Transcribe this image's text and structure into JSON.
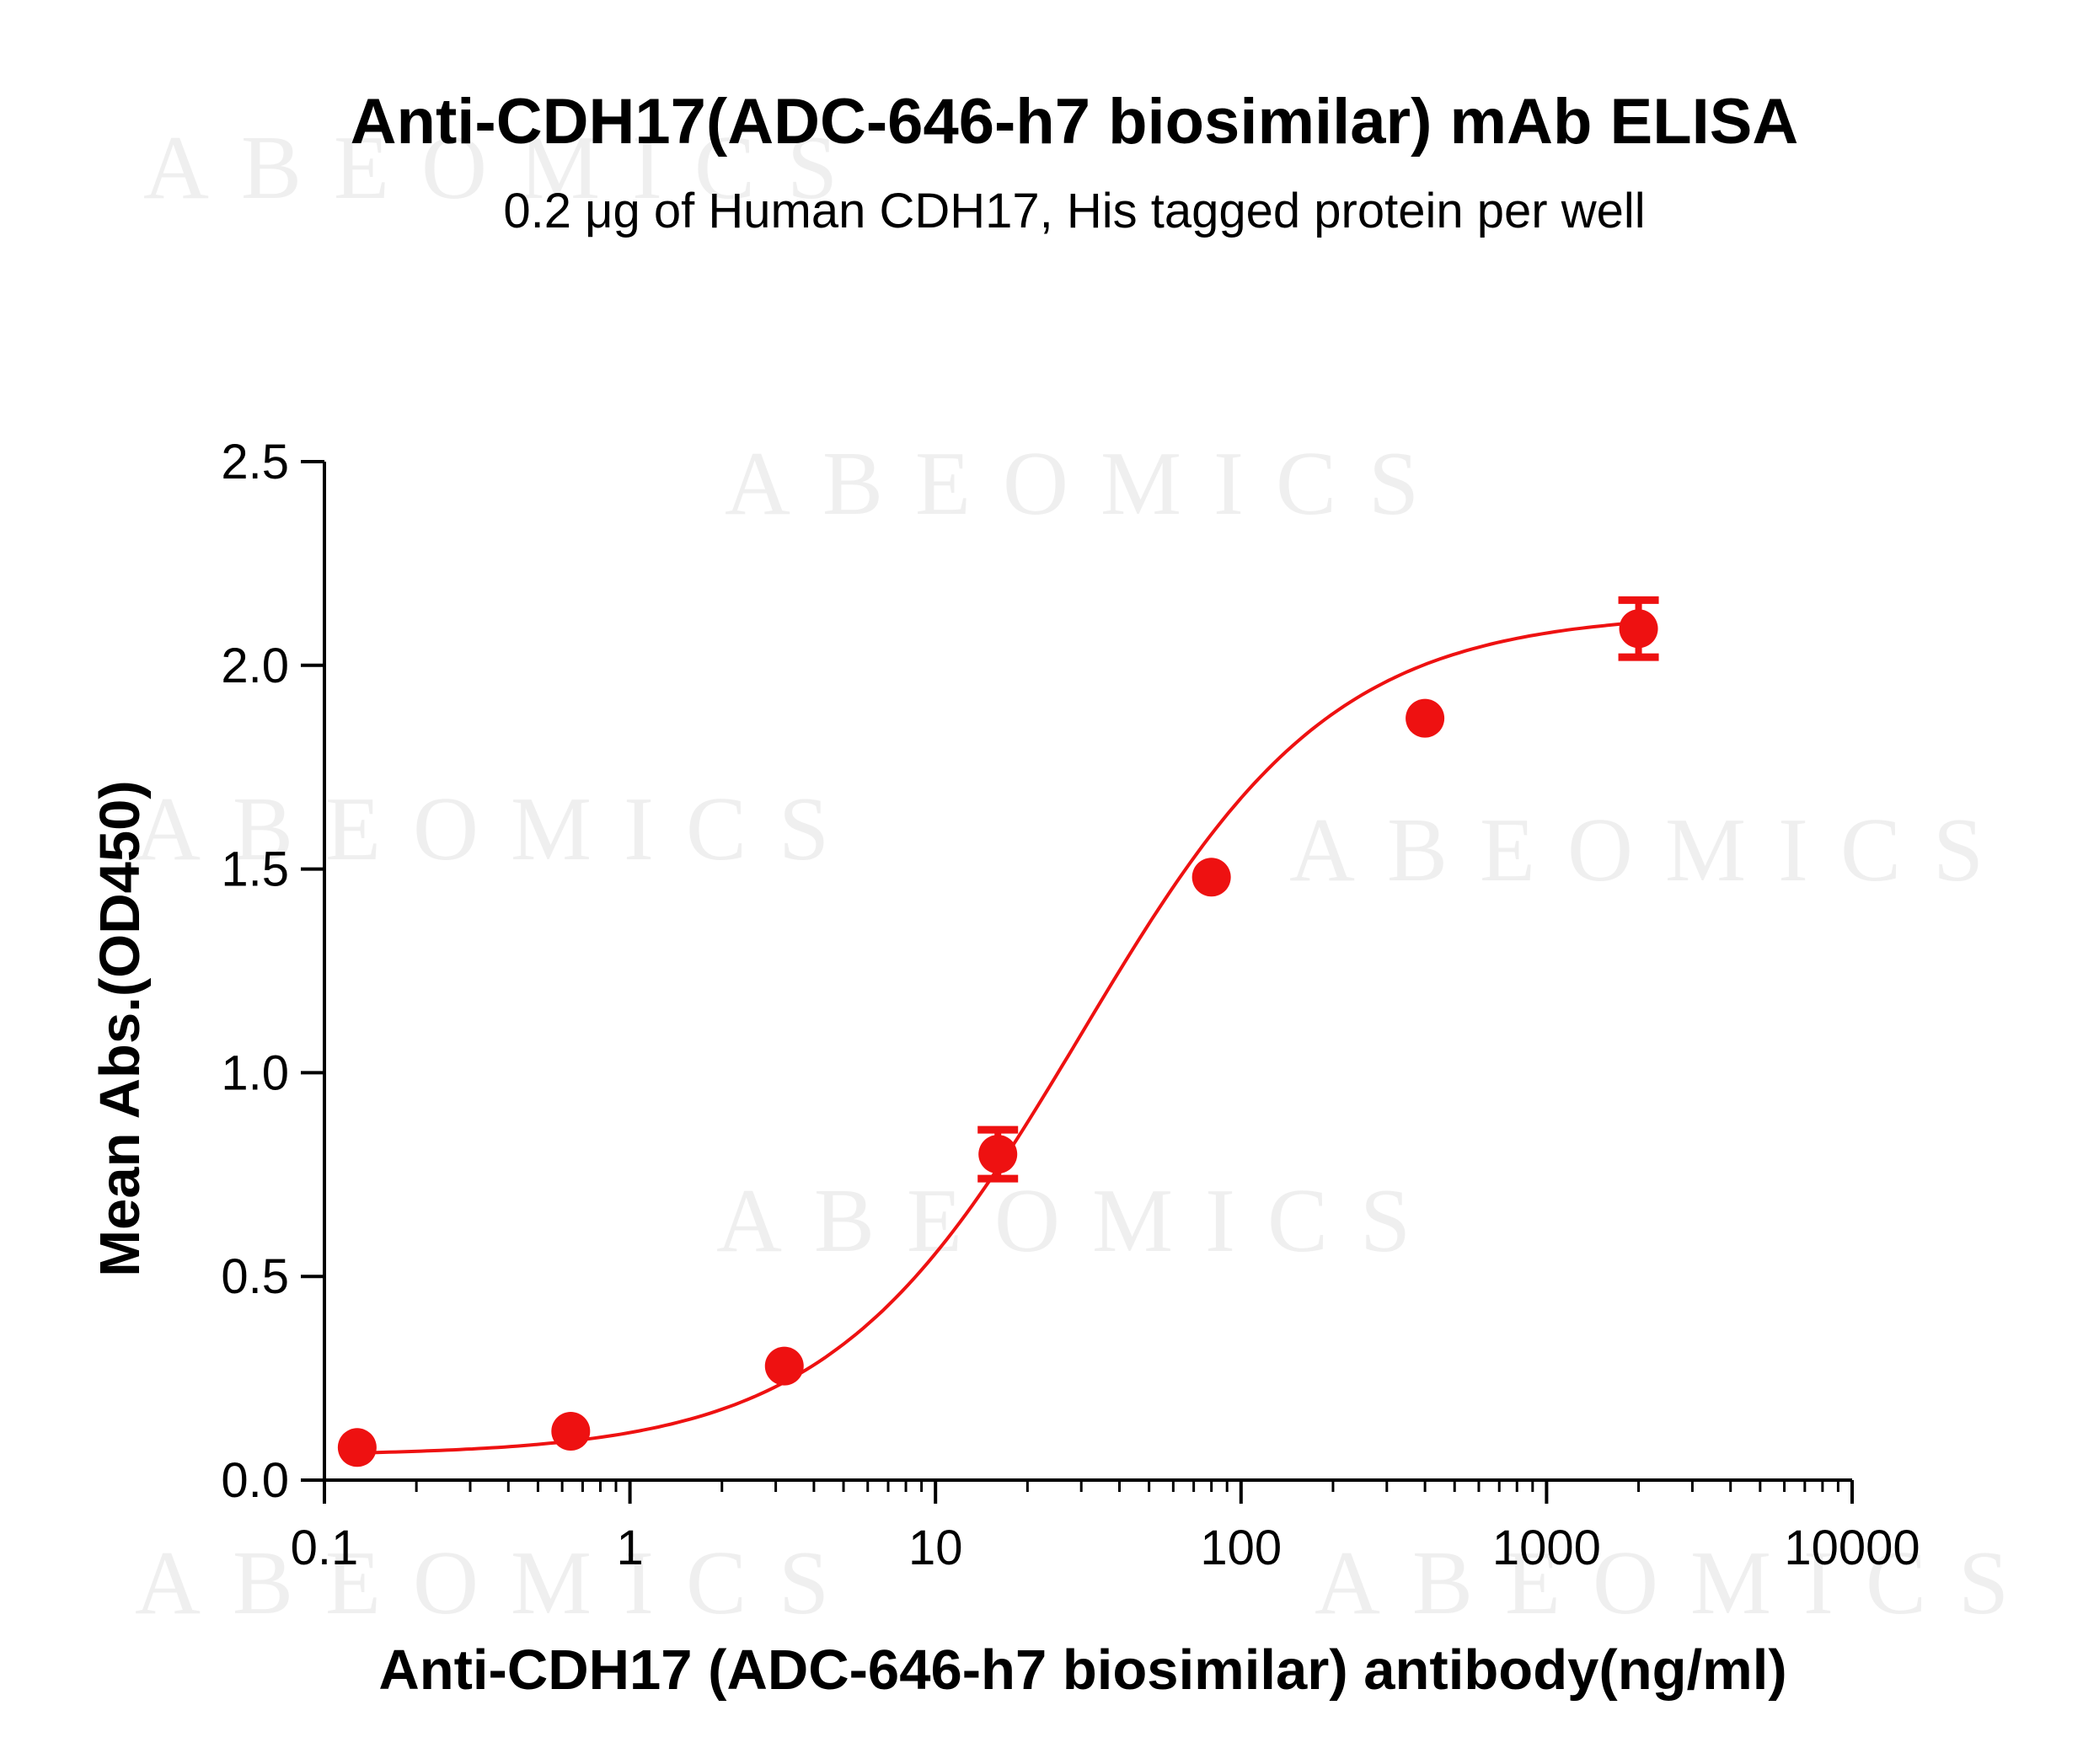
{
  "chart_data": {
    "type": "scatter",
    "title": "Anti-CDH17(ADC-646-h7 biosimilar) mAb ELISA",
    "subtitle": "0.2 μg of Human CDH17, His tagged protein per well",
    "xlabel": "Anti-CDH17 (ADC-646-h7 biosimilar) antibody(ng/ml)",
    "ylabel": "Mean Abs.(OD450)",
    "xscale": "log",
    "xlim": [
      0.1,
      10000
    ],
    "ylim": [
      0.0,
      2.5
    ],
    "xticks": [
      "0.1",
      "1",
      "10",
      "100",
      "1000",
      "10000"
    ],
    "yticks": [
      "0.0",
      "0.5",
      "1.0",
      "1.5",
      "2.0",
      "2.5"
    ],
    "grid": false,
    "color": "#ee1111",
    "series": [
      {
        "x": [
          0.128,
          0.64,
          3.2,
          16,
          80,
          400,
          2000
        ],
        "y": [
          0.08,
          0.12,
          0.28,
          0.8,
          1.48,
          1.87,
          2.09
        ],
        "error": [
          0.0,
          0.0,
          0.0,
          0.06,
          0.0,
          0.0,
          0.07
        ]
      }
    ],
    "fit_curve": {
      "model": "4PL",
      "bottom": 0.06,
      "top": 2.13,
      "ec50": 30,
      "hill": 1.05
    },
    "watermark": "ABEOMICS"
  }
}
